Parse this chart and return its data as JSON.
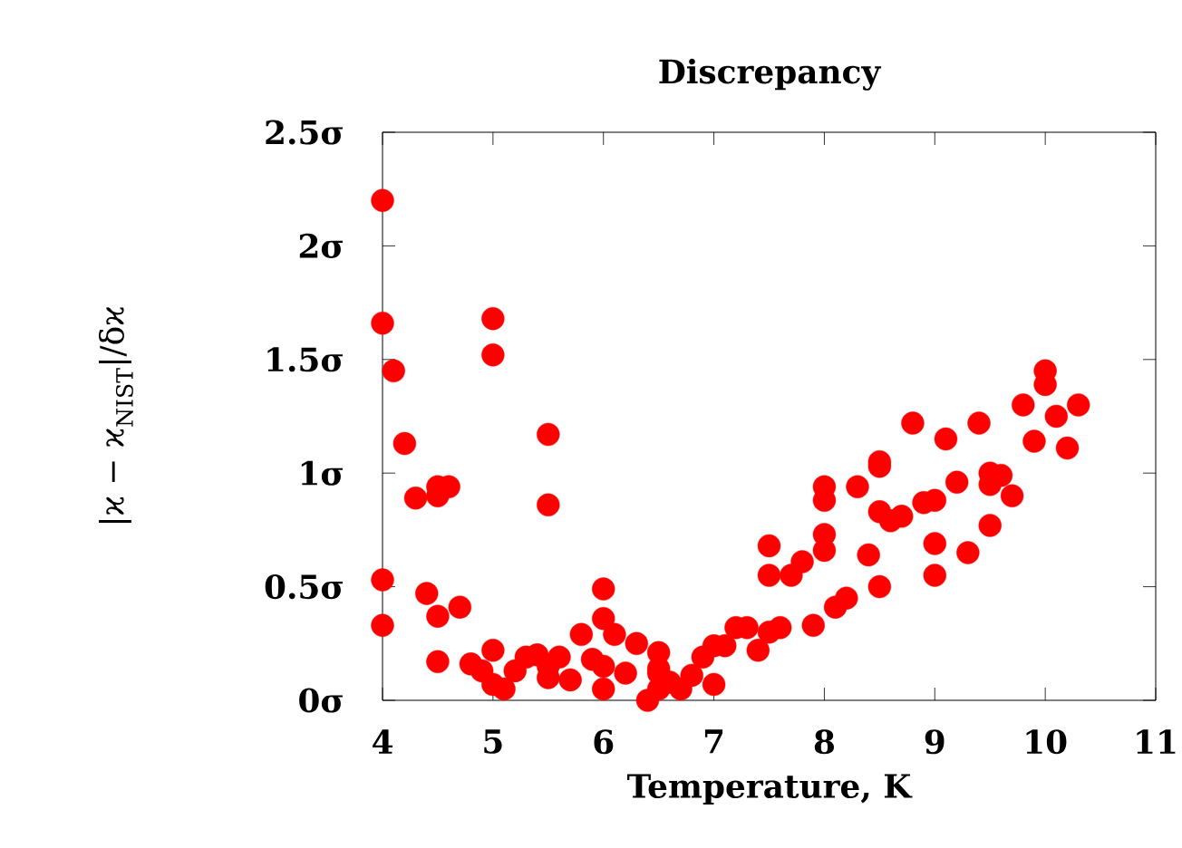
{
  "chart_data": {
    "type": "scatter",
    "title": "Discrepancy",
    "xlabel": "Temperature, K",
    "ylabel": "|ϰ − ϰ$_{NIST}$|/δϰ",
    "x": [
      4,
      4,
      4.1,
      4.2,
      4.3,
      4.5,
      4.5,
      4.6,
      4,
      4,
      4.4,
      4.5,
      4.7,
      4.5,
      5,
      5,
      5.5,
      5.5,
      4.8,
      4.9,
      5,
      5,
      5.1,
      5.2,
      5.3,
      5.4,
      5.5,
      5.5,
      5.6,
      5.7,
      5.8,
      5.9,
      6,
      6,
      6,
      6,
      6.1,
      6.2,
      6.3,
      6.4,
      6.5,
      6.5,
      6.5,
      6.6,
      6.5,
      6.7,
      6.8,
      6.9,
      7,
      7,
      7.1,
      7.2,
      7.3,
      7.4,
      7.5,
      7.6,
      7.5,
      7.5,
      7.7,
      7.8,
      7.9,
      8,
      8,
      8,
      8,
      8.1,
      8.2,
      8.3,
      8.4,
      8.5,
      8.5,
      8.5,
      8.5,
      8.6,
      8.7,
      8.8,
      8.9,
      9,
      9,
      9,
      9.1,
      9.2,
      9.3,
      9.4,
      9.5,
      9.5,
      9.5,
      9.6,
      9.7,
      9.8,
      9.9,
      10,
      10,
      10.1,
      10.2,
      10.3
    ],
    "values": [
      2.2,
      1.66,
      1.45,
      1.13,
      0.89,
      0.94,
      0.9,
      0.94,
      0.53,
      0.33,
      0.47,
      0.37,
      0.41,
      0.17,
      1.68,
      1.52,
      1.17,
      0.86,
      0.16,
      0.13,
      0.22,
      0.07,
      0.05,
      0.13,
      0.19,
      0.2,
      0.1,
      0.15,
      0.19,
      0.09,
      0.29,
      0.18,
      0.49,
      0.36,
      0.15,
      0.05,
      0.29,
      0.12,
      0.25,
      0.0,
      0.21,
      0.14,
      0.12,
      0.08,
      0.05,
      0.05,
      0.11,
      0.19,
      0.24,
      0.07,
      0.24,
      0.32,
      0.32,
      0.22,
      0.3,
      0.32,
      0.55,
      0.68,
      0.55,
      0.61,
      0.33,
      0.66,
      0.73,
      0.88,
      0.94,
      0.41,
      0.45,
      0.94,
      0.64,
      0.5,
      0.83,
      1.03,
      1.05,
      0.79,
      0.81,
      1.22,
      0.87,
      0.88,
      0.69,
      0.55,
      1.15,
      0.96,
      0.65,
      1.22,
      1.0,
      0.95,
      0.77,
      0.99,
      0.9,
      1.3,
      1.14,
      1.45,
      1.39,
      1.25,
      1.11,
      1.3
    ],
    "color": "#ff0000",
    "marker": "circle",
    "xlim": [
      4,
      11
    ],
    "xticks": [
      4,
      5,
      6,
      7,
      8,
      9,
      10,
      11
    ],
    "ylim": [
      0,
      2.5
    ],
    "yticks": [
      {
        "value": 0,
        "label": "0σ"
      },
      {
        "value": 0.5,
        "label": "0.5σ"
      },
      {
        "value": 1,
        "label": "1σ"
      },
      {
        "value": 1.5,
        "label": "1.5σ"
      },
      {
        "value": 2,
        "label": "2σ"
      },
      {
        "value": 2.5,
        "label": "2.5σ"
      }
    ],
    "grid": false
  }
}
